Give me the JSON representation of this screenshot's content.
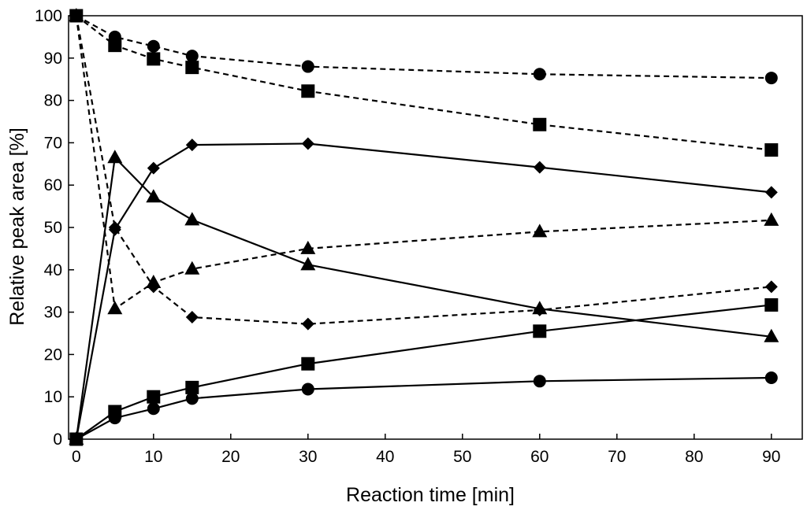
{
  "chart_data": {
    "type": "line",
    "title": "",
    "xlabel": "Reaction time [min]",
    "ylabel": "Relative peak area [%]",
    "xlim": [
      -1,
      94
    ],
    "ylim": [
      0,
      100
    ],
    "xticks": [
      0,
      10,
      20,
      30,
      40,
      50,
      60,
      70,
      80,
      90
    ],
    "yticks": [
      0,
      10,
      20,
      30,
      40,
      50,
      60,
      70,
      80,
      90,
      100
    ],
    "x": [
      0,
      5,
      10,
      15,
      30,
      60,
      90
    ],
    "grid": false,
    "legend": "none",
    "series": [
      {
        "name": "circle-dashed",
        "marker": "circle",
        "linestyle": "dashed",
        "values": [
          100,
          95,
          92.8,
          90.5,
          88,
          86.2,
          85.3
        ]
      },
      {
        "name": "square-dashed",
        "marker": "square",
        "linestyle": "dashed",
        "values": [
          100,
          93,
          89.8,
          87.8,
          82.2,
          74.3,
          68.3
        ]
      },
      {
        "name": "diamond-solid",
        "marker": "diamond",
        "linestyle": "solid",
        "values": [
          0,
          49.5,
          64,
          69.5,
          69.8,
          64.2,
          58.3
        ]
      },
      {
        "name": "triangle-solid",
        "marker": "triangle",
        "linestyle": "solid",
        "values": [
          0,
          66.5,
          57.2,
          51.8,
          41.2,
          30.8,
          24.2
        ]
      },
      {
        "name": "triangle-dashed",
        "marker": "triangle",
        "linestyle": "dashed",
        "values": [
          100,
          30.8,
          37,
          40.2,
          45,
          49,
          51.7
        ]
      },
      {
        "name": "diamond-dashed",
        "marker": "diamond",
        "linestyle": "dashed",
        "values": [
          100,
          50,
          36,
          28.8,
          27.2,
          30.5,
          36
        ]
      },
      {
        "name": "square-solid",
        "marker": "square",
        "linestyle": "solid",
        "values": [
          0,
          6.5,
          10,
          12.2,
          17.8,
          25.5,
          31.7
        ]
      },
      {
        "name": "circle-solid",
        "marker": "circle",
        "linestyle": "solid",
        "values": [
          0,
          5,
          7.2,
          9.6,
          11.8,
          13.7,
          14.5
        ]
      }
    ]
  }
}
